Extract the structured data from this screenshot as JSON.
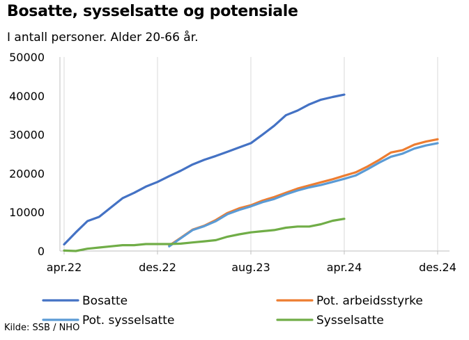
{
  "chart_data": {
    "type": "line",
    "title": "Bosatte, sysselsatte og potensiale",
    "subtitle": "I antall personer. Alder 20-66 år.",
    "source": "Kilde: SSB / NHO",
    "ylim": [
      0,
      50000
    ],
    "y_ticks": [
      0,
      10000,
      20000,
      30000,
      40000,
      50000
    ],
    "y_tick_labels": [
      "0",
      "10000",
      "20000",
      "30000",
      "40000",
      "50000"
    ],
    "x_tick_labels": [
      "apr.22",
      "des.22",
      "aug.23",
      "apr.24",
      "des.24"
    ],
    "x_tick_months": [
      0,
      8,
      16,
      24,
      32
    ],
    "grid": "vertical",
    "legend": "bottom",
    "series": [
      {
        "name": "Bosatte",
        "color": "#4472C4",
        "x_start_month": 0,
        "values": [
          1700,
          4800,
          7700,
          8800,
          11200,
          13600,
          15000,
          16600,
          17800,
          19300,
          20700,
          22300,
          23500,
          24500,
          25600,
          26700,
          27800,
          30000,
          32300,
          35000,
          36200,
          37800,
          39000,
          39700,
          40300
        ]
      },
      {
        "name": "Pot. arbeidsstyrke",
        "color": "#ED7D31",
        "x_start_month": 9,
        "values": [
          1400,
          3400,
          5500,
          6500,
          8000,
          9800,
          11000,
          11800,
          13000,
          13900,
          15000,
          16100,
          16900,
          17700,
          18500,
          19400,
          20300,
          21800,
          23500,
          25400,
          26000,
          27400,
          28200,
          28800
        ]
      },
      {
        "name": "Pot. sysselsatte",
        "color": "#5B9BD5",
        "x_start_month": 9,
        "values": [
          1200,
          3300,
          5400,
          6400,
          7700,
          9500,
          10600,
          11500,
          12600,
          13400,
          14600,
          15600,
          16400,
          17000,
          17800,
          18600,
          19500,
          21100,
          22800,
          24300,
          25100,
          26400,
          27200,
          27800
        ]
      },
      {
        "name": "Sysselsatte",
        "color": "#70AD47",
        "x_start_month": 0,
        "values": [
          100,
          0,
          600,
          900,
          1200,
          1500,
          1500,
          1800,
          1800,
          1800,
          1900,
          2200,
          2500,
          2800,
          3700,
          4300,
          4800,
          5100,
          5400,
          6000,
          6300,
          6300,
          6900,
          7800,
          8300
        ]
      }
    ]
  }
}
